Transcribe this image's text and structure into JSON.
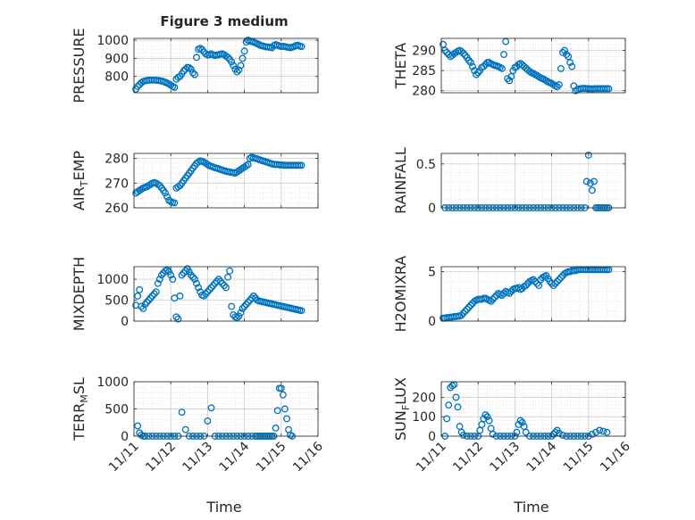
{
  "figure": {
    "title": "Figure 3 medium",
    "xlabel": "Time"
  },
  "colors": {
    "marker": "#0072BD",
    "axis": "#262626",
    "grid_minor": "#d9d9d9",
    "grid_major": "#c8c8c8"
  },
  "chart_data": [
    {
      "type": "scatter",
      "ylabel_main": "PRESSURE",
      "ylabel_sub": "",
      "ylim": [
        710,
        1010
      ],
      "yticks": [
        800,
        900,
        1000
      ],
      "yticklabels": [
        "800",
        "900",
        "1000"
      ],
      "xlim": [
        0,
        5
      ],
      "grid": true,
      "x": [
        0.05,
        0.1,
        0.15,
        0.2,
        0.25,
        0.3,
        0.35,
        0.4,
        0.45,
        0.5,
        0.55,
        0.6,
        0.65,
        0.7,
        0.75,
        0.8,
        0.85,
        0.9,
        0.95,
        1.0,
        1.05,
        1.1,
        1.15,
        1.2,
        1.25,
        1.3,
        1.35,
        1.4,
        1.45,
        1.5,
        1.55,
        1.6,
        1.65,
        1.7,
        1.75,
        1.8,
        1.85,
        1.9,
        1.95,
        2.0,
        2.05,
        2.1,
        2.15,
        2.2,
        2.25,
        2.3,
        2.35,
        2.4,
        2.45,
        2.5,
        2.55,
        2.6,
        2.65,
        2.7,
        2.75,
        2.8,
        2.85,
        2.9,
        2.95,
        3.0,
        3.05,
        3.1,
        3.15,
        3.2,
        3.25,
        3.3,
        3.35,
        3.4,
        3.45,
        3.5,
        3.55,
        3.6,
        3.65,
        3.7,
        3.75,
        3.8,
        3.85,
        3.9,
        3.95,
        4.0,
        4.05,
        4.1,
        4.15,
        4.2,
        4.25,
        4.3,
        4.35,
        4.4,
        4.45,
        4.5,
        4.55
      ],
      "y": [
        730,
        745,
        755,
        765,
        772,
        776,
        778,
        779,
        780,
        780,
        780,
        779,
        778,
        777,
        775,
        772,
        768,
        763,
        758,
        752,
        745,
        740,
        785,
        795,
        800,
        815,
        830,
        840,
        850,
        848,
        840,
        820,
        810,
        905,
        950,
        955,
        948,
        935,
        925,
        918,
        920,
        925,
        920,
        915,
        918,
        920,
        923,
        925,
        920,
        912,
        905,
        895,
        880,
        860,
        840,
        825,
        835,
        860,
        900,
        940,
        990,
        1000,
        995,
        992,
        990,
        985,
        980,
        975,
        970,
        968,
        965,
        963,
        962,
        960,
        958,
        970,
        975,
        972,
        968,
        965,
        966,
        965,
        962,
        960,
        958,
        961,
        965,
        970,
        972,
        968,
        965
      ]
    },
    {
      "type": "scatter",
      "ylabel_main": "THETA",
      "ylabel_sub": "",
      "ylim": [
        279.5,
        293
      ],
      "yticks": [
        280,
        285,
        290
      ],
      "yticklabels": [
        "280",
        "285",
        "290"
      ],
      "xlim": [
        0,
        5
      ],
      "grid": true,
      "x": [
        0.05,
        0.1,
        0.15,
        0.2,
        0.25,
        0.3,
        0.35,
        0.4,
        0.45,
        0.5,
        0.55,
        0.6,
        0.65,
        0.7,
        0.75,
        0.8,
        0.85,
        0.9,
        0.95,
        1.0,
        1.05,
        1.1,
        1.15,
        1.2,
        1.25,
        1.3,
        1.35,
        1.4,
        1.45,
        1.5,
        1.55,
        1.6,
        1.65,
        1.7,
        1.75,
        1.8,
        1.85,
        1.9,
        1.95,
        2.0,
        2.05,
        2.1,
        2.15,
        2.2,
        2.25,
        2.3,
        2.35,
        2.4,
        2.45,
        2.5,
        2.55,
        2.6,
        2.65,
        2.7,
        2.75,
        2.8,
        2.85,
        2.9,
        2.95,
        3.0,
        3.05,
        3.1,
        3.15,
        3.2,
        3.25,
        3.3,
        3.35,
        3.4,
        3.45,
        3.5,
        3.55,
        3.6,
        3.65,
        3.7,
        3.75,
        3.8,
        3.85,
        3.9,
        3.95,
        4.0,
        4.05,
        4.1,
        4.15,
        4.2,
        4.25,
        4.3,
        4.35,
        4.4,
        4.45,
        4.5,
        4.55
      ],
      "y": [
        291.5,
        290,
        289.5,
        289,
        288.5,
        288.8,
        289.2,
        289.5,
        289.8,
        290,
        289.7,
        289.3,
        288.8,
        288.2,
        287.5,
        287,
        286,
        285,
        284,
        284.5,
        285,
        285.8,
        286,
        286.5,
        287,
        287,
        286.7,
        286.5,
        286.3,
        286.2,
        286,
        285.8,
        285.5,
        289,
        292.2,
        283,
        282.5,
        283.5,
        285,
        285.8,
        286,
        286.5,
        286.8,
        286.4,
        286,
        285.6,
        285.2,
        284.8,
        284.5,
        284.3,
        284,
        283.8,
        283.5,
        283.2,
        283,
        282.8,
        282.5,
        282.2,
        282,
        281.8,
        281.5,
        281.2,
        281,
        281.5,
        285.5,
        289.5,
        290,
        289,
        288.5,
        287,
        286,
        281.2,
        280,
        280.3,
        280.5,
        280.5,
        280.6,
        280.6,
        280.5,
        280.5,
        280.5,
        280.4,
        280.5,
        280.5,
        280.5,
        280.5,
        280.5,
        280.5,
        280.5,
        280.5,
        280.5
      ]
    },
    {
      "type": "scatter",
      "ylabel_main": "AIR",
      "ylabel_sub": "T",
      "ylabel_rest": "EMP",
      "ylim": [
        260,
        282
      ],
      "yticks": [
        260,
        270,
        280
      ],
      "yticklabels": [
        "260",
        "270",
        "280"
      ],
      "xlim": [
        0,
        5
      ],
      "grid": true,
      "x": [
        0.05,
        0.1,
        0.15,
        0.2,
        0.25,
        0.3,
        0.35,
        0.4,
        0.45,
        0.5,
        0.55,
        0.6,
        0.65,
        0.7,
        0.75,
        0.8,
        0.85,
        0.9,
        0.95,
        1.0,
        1.05,
        1.1,
        1.15,
        1.2,
        1.25,
        1.3,
        1.35,
        1.4,
        1.45,
        1.5,
        1.55,
        1.6,
        1.65,
        1.7,
        1.75,
        1.8,
        1.85,
        1.9,
        1.95,
        2.0,
        2.05,
        2.1,
        2.15,
        2.2,
        2.25,
        2.3,
        2.35,
        2.4,
        2.45,
        2.5,
        2.55,
        2.6,
        2.65,
        2.7,
        2.75,
        2.8,
        2.85,
        2.9,
        2.95,
        3.0,
        3.05,
        3.1,
        3.15,
        3.2,
        3.25,
        3.3,
        3.35,
        3.4,
        3.45,
        3.5,
        3.55,
        3.6,
        3.65,
        3.7,
        3.75,
        3.8,
        3.85,
        3.9,
        3.95,
        4.0,
        4.05,
        4.1,
        4.15,
        4.2,
        4.25,
        4.3,
        4.35,
        4.4,
        4.45,
        4.5,
        4.55
      ],
      "y": [
        266,
        266.5,
        267,
        267.5,
        268,
        268.3,
        268.5,
        269,
        269.5,
        270,
        270.2,
        270,
        269.5,
        269,
        268,
        267,
        266,
        264.5,
        263,
        262.5,
        262.2,
        262,
        268,
        268.5,
        269,
        270,
        271,
        272,
        273,
        274,
        275,
        276,
        277,
        278,
        278.5,
        279,
        278.8,
        278.5,
        278,
        277.5,
        277,
        276.8,
        276.5,
        276.2,
        276,
        275.8,
        275.5,
        275.3,
        275,
        274.8,
        274.6,
        274.5,
        274.3,
        274.2,
        274,
        274.5,
        275,
        275.5,
        276,
        276.5,
        277,
        277.5,
        280,
        280.5,
        280.2,
        280,
        279.8,
        279.5,
        279.2,
        279,
        278.8,
        278.5,
        278.3,
        278,
        277.8,
        277.6,
        277.5,
        277.5,
        277.4,
        277.3,
        277.3,
        277.2,
        277.2,
        277.2,
        277.2,
        277.2,
        277.2,
        277.2,
        277.2,
        277.2,
        277.2
      ]
    },
    {
      "type": "scatter",
      "ylabel_main": "RAINFALL",
      "ylabel_sub": "",
      "ylim": [
        0,
        0.62
      ],
      "yticks": [
        0,
        0.5
      ],
      "yticklabels": [
        "0",
        "0.5"
      ],
      "xlim": [
        0,
        5
      ],
      "grid": true,
      "x": [
        0.1,
        0.2,
        0.3,
        0.4,
        0.5,
        0.6,
        0.7,
        0.8,
        0.9,
        1.0,
        1.1,
        1.2,
        1.3,
        1.4,
        1.5,
        1.6,
        1.7,
        1.8,
        1.9,
        2.0,
        2.1,
        2.2,
        2.3,
        2.4,
        2.5,
        2.6,
        2.7,
        2.8,
        2.9,
        3.0,
        3.1,
        3.2,
        3.3,
        3.4,
        3.5,
        3.6,
        3.7,
        3.8,
        3.9,
        3.95,
        4.0,
        4.05,
        4.1,
        4.15,
        4.2,
        4.25,
        4.3,
        4.35,
        4.4,
        4.45,
        4.5,
        4.55
      ],
      "y": [
        0,
        0,
        0,
        0,
        0,
        0,
        0,
        0,
        0,
        0,
        0,
        0,
        0,
        0,
        0,
        0,
        0,
        0,
        0,
        0,
        0,
        0,
        0,
        0,
        0,
        0,
        0,
        0,
        0,
        0,
        0,
        0,
        0,
        0,
        0,
        0,
        0,
        0,
        0,
        0.3,
        0.6,
        0.28,
        0.2,
        0.3,
        0,
        0,
        0,
        0,
        0,
        0,
        0,
        0
      ]
    },
    {
      "type": "scatter",
      "ylabel_main": "MIXDEPTH",
      "ylabel_sub": "",
      "ylim": [
        0,
        1300
      ],
      "yticks": [
        0,
        500,
        1000
      ],
      "yticklabels": [
        "0",
        "500",
        "1000"
      ],
      "xlim": [
        0,
        5
      ],
      "grid": true,
      "x": [
        0.05,
        0.1,
        0.15,
        0.2,
        0.25,
        0.3,
        0.35,
        0.4,
        0.45,
        0.5,
        0.55,
        0.6,
        0.65,
        0.7,
        0.75,
        0.8,
        0.85,
        0.9,
        0.95,
        1.0,
        1.05,
        1.1,
        1.15,
        1.2,
        1.25,
        1.3,
        1.35,
        1.4,
        1.45,
        1.5,
        1.55,
        1.6,
        1.65,
        1.7,
        1.75,
        1.8,
        1.85,
        1.9,
        1.95,
        2.0,
        2.05,
        2.1,
        2.15,
        2.2,
        2.25,
        2.3,
        2.35,
        2.4,
        2.45,
        2.5,
        2.55,
        2.6,
        2.65,
        2.7,
        2.75,
        2.8,
        2.85,
        2.9,
        2.95,
        3.0,
        3.05,
        3.1,
        3.15,
        3.2,
        3.25,
        3.3,
        3.35,
        3.4,
        3.45,
        3.5,
        3.55,
        3.6,
        3.65,
        3.7,
        3.75,
        3.8,
        3.85,
        3.9,
        3.95,
        4.0,
        4.05,
        4.1,
        4.15,
        4.2,
        4.25,
        4.3,
        4.35,
        4.4,
        4.45,
        4.5,
        4.55
      ],
      "y": [
        380,
        600,
        750,
        350,
        300,
        400,
        450,
        500,
        550,
        600,
        650,
        700,
        900,
        1000,
        1100,
        1150,
        1200,
        1220,
        1180,
        1100,
        1000,
        550,
        100,
        50,
        600,
        1100,
        1150,
        1200,
        1250,
        1180,
        1100,
        1050,
        1000,
        900,
        800,
        700,
        620,
        600,
        650,
        700,
        750,
        800,
        850,
        900,
        950,
        1000,
        950,
        900,
        850,
        800,
        1050,
        1200,
        350,
        150,
        100,
        80,
        120,
        200,
        300,
        350,
        400,
        450,
        500,
        550,
        600,
        550,
        500,
        480,
        470,
        460,
        450,
        440,
        430,
        420,
        410,
        400,
        390,
        380,
        370,
        360,
        350,
        340,
        330,
        320,
        310,
        300,
        290,
        280,
        270,
        260,
        250
      ]
    },
    {
      "type": "scatter",
      "ylabel_main": "H2OMIXRA",
      "ylabel_sub": "",
      "ylim": [
        0,
        5.5
      ],
      "yticks": [
        0,
        5
      ],
      "yticklabels": [
        "0",
        "5"
      ],
      "xlim": [
        0,
        5
      ],
      "grid": true,
      "x": [
        0.05,
        0.1,
        0.15,
        0.2,
        0.25,
        0.3,
        0.35,
        0.4,
        0.45,
        0.5,
        0.55,
        0.6,
        0.65,
        0.7,
        0.75,
        0.8,
        0.85,
        0.9,
        0.95,
        1.0,
        1.05,
        1.1,
        1.15,
        1.2,
        1.25,
        1.3,
        1.35,
        1.4,
        1.45,
        1.5,
        1.55,
        1.6,
        1.65,
        1.7,
        1.75,
        1.8,
        1.85,
        1.9,
        1.95,
        2.0,
        2.05,
        2.1,
        2.15,
        2.2,
        2.25,
        2.3,
        2.35,
        2.4,
        2.45,
        2.5,
        2.55,
        2.6,
        2.65,
        2.7,
        2.75,
        2.8,
        2.85,
        2.9,
        2.95,
        3.0,
        3.05,
        3.1,
        3.15,
        3.2,
        3.25,
        3.3,
        3.35,
        3.4,
        3.45,
        3.5,
        3.55,
        3.6,
        3.65,
        3.7,
        3.75,
        3.8,
        3.85,
        3.9,
        3.95,
        4.0,
        4.05,
        4.1,
        4.15,
        4.2,
        4.25,
        4.3,
        4.35,
        4.4,
        4.45,
        4.5,
        4.55
      ],
      "y": [
        0.3,
        0.3,
        0.35,
        0.35,
        0.4,
        0.4,
        0.45,
        0.45,
        0.5,
        0.5,
        0.6,
        0.8,
        1.0,
        1.2,
        1.4,
        1.6,
        1.8,
        2.0,
        2.1,
        2.2,
        2.2,
        2.2,
        2.3,
        2.3,
        2.2,
        2.1,
        2.0,
        2.2,
        2.4,
        2.6,
        2.8,
        2.7,
        2.6,
        2.8,
        3.0,
        2.9,
        2.8,
        3.0,
        3.2,
        3.3,
        3.3,
        3.4,
        3.2,
        3.3,
        3.5,
        3.6,
        3.8,
        4.0,
        4.1,
        4.2,
        4.0,
        3.8,
        3.6,
        4.2,
        4.4,
        4.5,
        4.6,
        4.3,
        4.0,
        3.8,
        3.6,
        3.8,
        4.0,
        4.2,
        4.4,
        4.6,
        4.8,
        4.9,
        5.0,
        5.0,
        5.1,
        5.1,
        5.1,
        5.2,
        5.2,
        5.2,
        5.2,
        5.2,
        5.2,
        5.2,
        5.2,
        5.2,
        5.2,
        5.2,
        5.2,
        5.2,
        5.2,
        5.2,
        5.2,
        5.2,
        5.2
      ]
    },
    {
      "type": "scatter",
      "ylabel_main": "TERR",
      "ylabel_sub": "M",
      "ylabel_rest": "SL",
      "ylim": [
        0,
        1000
      ],
      "yticks": [
        0,
        500,
        1000
      ],
      "yticklabels": [
        "0",
        "500",
        "1000"
      ],
      "xlim": [
        0,
        5
      ],
      "grid": true,
      "x": [
        0.1,
        0.15,
        0.2,
        0.25,
        0.3,
        0.4,
        0.5,
        0.6,
        0.7,
        0.8,
        0.9,
        1.0,
        1.1,
        1.2,
        1.3,
        1.4,
        1.5,
        1.6,
        1.7,
        1.8,
        1.9,
        2.0,
        2.1,
        2.2,
        2.3,
        2.4,
        2.5,
        2.6,
        2.7,
        2.8,
        2.9,
        3.0,
        3.1,
        3.2,
        3.3,
        3.35,
        3.4,
        3.45,
        3.5,
        3.55,
        3.6,
        3.65,
        3.7,
        3.75,
        3.8,
        3.85,
        3.9,
        3.95,
        4.0,
        4.05,
        4.1,
        4.15,
        4.2,
        4.25,
        4.3
      ],
      "y": [
        190,
        60,
        20,
        0,
        0,
        0,
        0,
        0,
        0,
        0,
        0,
        0,
        0,
        0,
        440,
        120,
        0,
        0,
        0,
        0,
        0,
        280,
        520,
        0,
        0,
        0,
        0,
        0,
        0,
        0,
        0,
        0,
        0,
        0,
        0,
        0,
        0,
        0,
        0,
        0,
        0,
        0,
        0,
        0,
        0,
        150,
        470,
        880,
        880,
        760,
        500,
        320,
        120,
        20,
        0
      ]
    },
    {
      "type": "scatter",
      "ylabel_main": "SUN",
      "ylabel_sub": "F",
      "ylabel_rest": "LUX",
      "ylim": [
        0,
        280
      ],
      "yticks": [
        0,
        100,
        200
      ],
      "yticklabels": [
        "0",
        "100",
        "200"
      ],
      "xlim": [
        0,
        5
      ],
      "grid": true,
      "x": [
        0.1,
        0.15,
        0.2,
        0.25,
        0.3,
        0.35,
        0.4,
        0.45,
        0.5,
        0.55,
        0.6,
        0.7,
        0.8,
        0.9,
        1.0,
        1.05,
        1.1,
        1.15,
        1.2,
        1.25,
        1.3,
        1.35,
        1.4,
        1.5,
        1.6,
        1.7,
        1.8,
        1.9,
        2.0,
        2.05,
        2.1,
        2.15,
        2.2,
        2.25,
        2.3,
        2.4,
        2.5,
        2.6,
        2.7,
        2.8,
        2.9,
        3.0,
        3.05,
        3.1,
        3.15,
        3.2,
        3.3,
        3.4,
        3.5,
        3.6,
        3.7,
        3.8,
        3.9,
        4.0,
        4.1,
        4.2,
        4.3,
        4.4,
        4.5
      ],
      "y": [
        0,
        90,
        160,
        250,
        260,
        265,
        200,
        150,
        50,
        20,
        5,
        0,
        0,
        0,
        0,
        30,
        60,
        90,
        110,
        100,
        80,
        40,
        10,
        0,
        0,
        0,
        0,
        0,
        0,
        20,
        60,
        80,
        70,
        50,
        20,
        0,
        0,
        0,
        0,
        0,
        0,
        0,
        10,
        20,
        30,
        15,
        5,
        0,
        0,
        0,
        0,
        0,
        0,
        0,
        10,
        20,
        30,
        25,
        20
      ]
    }
  ],
  "xticklabels": [
    "11/11",
    "11/12",
    "11/13",
    "11/14",
    "11/15",
    "11/16"
  ]
}
